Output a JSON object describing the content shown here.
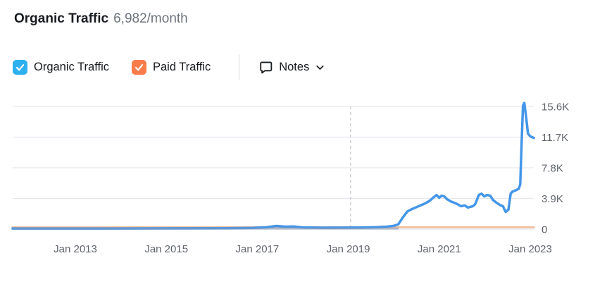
{
  "header": {
    "title": "Organic Traffic",
    "value": "6,982/month"
  },
  "legend": {
    "items": [
      {
        "label": "Organic Traffic",
        "color": "#2fb0ef",
        "checked": true
      },
      {
        "label": "Paid Traffic",
        "color": "#f97c4a",
        "checked": true
      }
    ]
  },
  "notes": {
    "label": "Notes"
  },
  "chart_data": {
    "type": "line",
    "title": "Organic Traffic",
    "xlabel": "",
    "ylabel": "",
    "x_unit": "decimal_year",
    "xlim": [
      2011.62,
      2023.08
    ],
    "ylim": [
      0,
      17400
    ],
    "grid": "horizontal",
    "legend_position": "top",
    "yticks": [
      {
        "value": 0,
        "label": "0"
      },
      {
        "value": 3900,
        "label": "3.9K"
      },
      {
        "value": 7800,
        "label": "7.8K"
      },
      {
        "value": 11700,
        "label": "11.7K"
      },
      {
        "value": 15600,
        "label": "15.6K"
      }
    ],
    "xticks": [
      {
        "value": 2013,
        "label": "Jan 2013"
      },
      {
        "value": 2015,
        "label": "Jan 2015"
      },
      {
        "value": 2017,
        "label": "Jan 2017"
      },
      {
        "value": 2019,
        "label": "Jan 2019"
      },
      {
        "value": 2021,
        "label": "Jan 2021"
      },
      {
        "value": 2023,
        "label": "Jan 2023"
      }
    ],
    "annotations": [
      {
        "type": "vline",
        "x": 2019.05,
        "style": "dashed",
        "color": "#c8c9cf"
      }
    ],
    "series": [
      {
        "name": "Organic Traffic",
        "color": "#4496e8",
        "points": [
          [
            2011.62,
            80
          ],
          [
            2012.5,
            80
          ],
          [
            2013.5,
            85
          ],
          [
            2014.5,
            90
          ],
          [
            2015.5,
            95
          ],
          [
            2016.3,
            105
          ],
          [
            2016.9,
            150
          ],
          [
            2017.2,
            230
          ],
          [
            2017.42,
            400
          ],
          [
            2017.62,
            310
          ],
          [
            2017.8,
            330
          ],
          [
            2018.0,
            215
          ],
          [
            2018.45,
            175
          ],
          [
            2018.9,
            185
          ],
          [
            2019.3,
            205
          ],
          [
            2019.6,
            245
          ],
          [
            2019.85,
            310
          ],
          [
            2020.0,
            420
          ],
          [
            2020.1,
            620
          ],
          [
            2020.2,
            1500
          ],
          [
            2020.3,
            2250
          ],
          [
            2020.4,
            2550
          ],
          [
            2020.5,
            2800
          ],
          [
            2020.6,
            3050
          ],
          [
            2020.7,
            3300
          ],
          [
            2020.8,
            3650
          ],
          [
            2020.88,
            4070
          ],
          [
            2020.94,
            4340
          ],
          [
            2021.0,
            3990
          ],
          [
            2021.05,
            4250
          ],
          [
            2021.11,
            4160
          ],
          [
            2021.17,
            3810
          ],
          [
            2021.25,
            3530
          ],
          [
            2021.33,
            3350
          ],
          [
            2021.4,
            3170
          ],
          [
            2021.48,
            2910
          ],
          [
            2021.56,
            3010
          ],
          [
            2021.63,
            2740
          ],
          [
            2021.68,
            2830
          ],
          [
            2021.74,
            2910
          ],
          [
            2021.79,
            3170
          ],
          [
            2021.87,
            4340
          ],
          [
            2021.93,
            4510
          ],
          [
            2021.99,
            4160
          ],
          [
            2022.05,
            4340
          ],
          [
            2022.12,
            4250
          ],
          [
            2022.18,
            3710
          ],
          [
            2022.26,
            3350
          ],
          [
            2022.33,
            3080
          ],
          [
            2022.4,
            2910
          ],
          [
            2022.46,
            2190
          ],
          [
            2022.52,
            2470
          ],
          [
            2022.57,
            4510
          ],
          [
            2022.61,
            4780
          ],
          [
            2022.69,
            4960
          ],
          [
            2022.75,
            5150
          ],
          [
            2022.78,
            5700
          ],
          [
            2022.81,
            10800
          ],
          [
            2022.84,
            15700
          ],
          [
            2022.87,
            16050
          ],
          [
            2022.91,
            14200
          ],
          [
            2022.95,
            12150
          ],
          [
            2023.0,
            11800
          ],
          [
            2023.08,
            11600
          ]
        ]
      },
      {
        "name": "Paid Traffic",
        "color": "#f2c0a0",
        "points": [
          [
            2011.62,
            230
          ],
          [
            2023.08,
            230
          ]
        ]
      }
    ]
  }
}
